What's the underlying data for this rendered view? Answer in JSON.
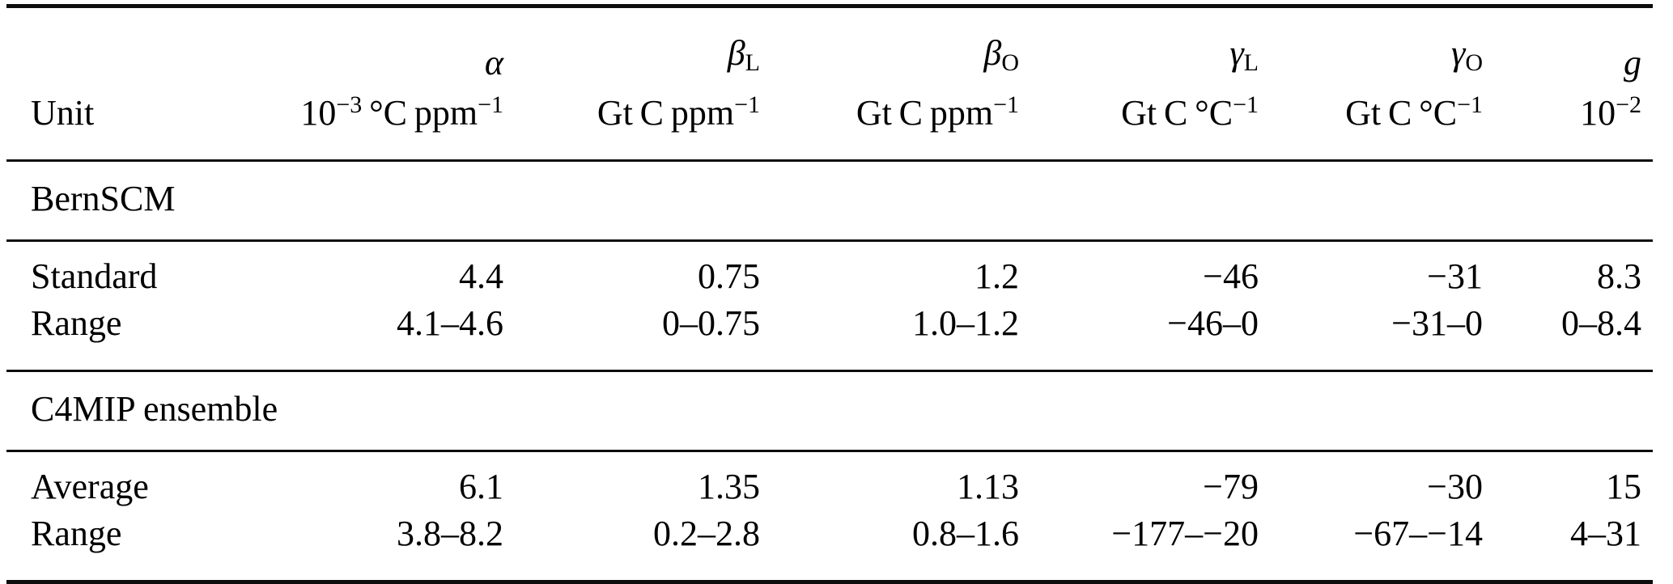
{
  "page": {
    "background_color": "#ffffff",
    "text_color": "#000000",
    "rule_color": "#0d0d0d"
  },
  "table": {
    "unit_label": "Unit",
    "header_columns": [
      {
        "symbol": "α",
        "subscript": "",
        "unit_parts": [
          [
            "t",
            "10"
          ],
          [
            "sup",
            "−3"
          ],
          [
            "t",
            " °C ppm"
          ],
          [
            "sup",
            "−1"
          ]
        ]
      },
      {
        "symbol": "β",
        "subscript": "L",
        "unit_parts": [
          [
            "t",
            "Gt C ppm"
          ],
          [
            "sup",
            "−1"
          ]
        ]
      },
      {
        "symbol": "β",
        "subscript": "O",
        "unit_parts": [
          [
            "t",
            "Gt C ppm"
          ],
          [
            "sup",
            "−1"
          ]
        ]
      },
      {
        "symbol": "γ",
        "subscript": "L",
        "unit_parts": [
          [
            "t",
            "Gt C °C"
          ],
          [
            "sup",
            "−1"
          ]
        ]
      },
      {
        "symbol": "γ",
        "subscript": "O",
        "unit_parts": [
          [
            "t",
            "Gt C °C"
          ],
          [
            "sup",
            "−1"
          ]
        ]
      },
      {
        "symbol": "g",
        "subscript": "",
        "unit_parts": [
          [
            "t",
            "10"
          ],
          [
            "sup",
            "−2"
          ]
        ]
      }
    ],
    "sections": [
      {
        "title": "BernSCM",
        "rows": [
          {
            "label": "Standard",
            "values": [
              "4.4",
              "0.75",
              "1.2",
              "−46",
              "−31",
              "8.3"
            ]
          },
          {
            "label": "Range",
            "values": [
              "4.1–4.6",
              "0–0.75",
              "1.0–1.2",
              "−46–0",
              "−31–0",
              "0–8.4"
            ]
          }
        ]
      },
      {
        "title": "C4MIP ensemble",
        "rows": [
          {
            "label": "Average",
            "values": [
              "6.1",
              "1.35",
              "1.13",
              "−79",
              "−30",
              "15"
            ]
          },
          {
            "label": "Range",
            "values": [
              "3.8–8.2",
              "0.2–2.8",
              "0.8–1.6",
              "−177–−20",
              "−67–−14",
              "4–31"
            ]
          }
        ]
      }
    ]
  }
}
